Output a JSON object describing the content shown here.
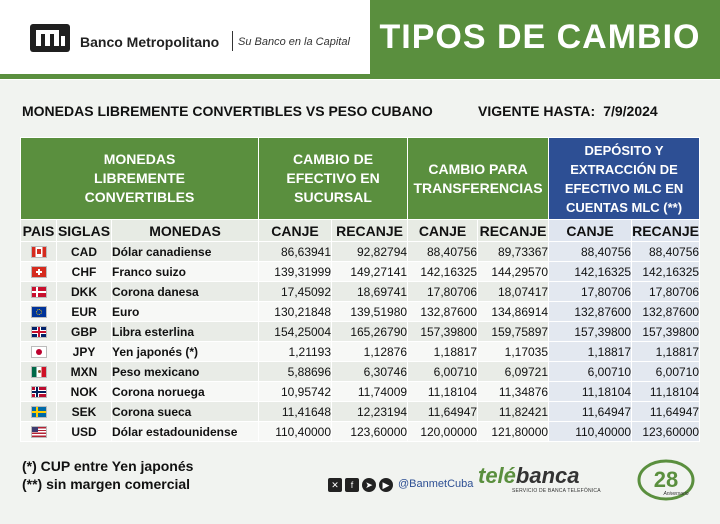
{
  "header": {
    "bank_name": "Banco Metropolitano",
    "slogan": "Su Banco en la Capital",
    "title": "TIPOS DE CAMBIO"
  },
  "subheader": {
    "left": "MONEDAS LIBREMENTE CONVERTIBLES VS PESO CUBANO",
    "right_label": "VIGENTE HASTA:",
    "right_date": "7/9/2024"
  },
  "table": {
    "group_headers": {
      "currencies": "MONEDAS LIBREMENTE CONVERTIBLES",
      "cash": "CAMBIO DE EFECTIVO EN SUCURSAL",
      "transfers": "CAMBIO PARA TRANSFERENCIAS",
      "mlc": "DEPÓSITO Y EXTRACCIÓN DE EFECTIVO MLC EN CUENTAS MLC (**)"
    },
    "columns": {
      "country": "PAIS",
      "code": "SIGLAS",
      "currency": "MONEDAS",
      "buy": "CANJE",
      "sell": "RECANJE"
    },
    "rows": [
      {
        "flag": "canada-flag-icon",
        "code": "CAD",
        "name": "Dólar canadiense",
        "cash_buy": "86,63941",
        "cash_sell": "92,82794",
        "tr_buy": "88,40756",
        "tr_sell": "89,73367",
        "mlc_buy": "88,40756",
        "mlc_sell": "88,40756"
      },
      {
        "flag": "switzerland-flag-icon",
        "code": "CHF",
        "name": "Franco suizo",
        "cash_buy": "139,31999",
        "cash_sell": "149,27141",
        "tr_buy": "142,16325",
        "tr_sell": "144,29570",
        "mlc_buy": "142,16325",
        "mlc_sell": "142,16325"
      },
      {
        "flag": "denmark-flag-icon",
        "code": "DKK",
        "name": "Corona danesa",
        "cash_buy": "17,45092",
        "cash_sell": "18,69741",
        "tr_buy": "17,80706",
        "tr_sell": "18,07417",
        "mlc_buy": "17,80706",
        "mlc_sell": "17,80706"
      },
      {
        "flag": "eu-flag-icon",
        "code": "EUR",
        "name": "Euro",
        "cash_buy": "130,21848",
        "cash_sell": "139,51980",
        "tr_buy": "132,87600",
        "tr_sell": "134,86914",
        "mlc_buy": "132,87600",
        "mlc_sell": "132,87600"
      },
      {
        "flag": "uk-flag-icon",
        "code": "GBP",
        "name": "Libra esterlina",
        "cash_buy": "154,25004",
        "cash_sell": "165,26790",
        "tr_buy": "157,39800",
        "tr_sell": "159,75897",
        "mlc_buy": "157,39800",
        "mlc_sell": "157,39800"
      },
      {
        "flag": "japan-flag-icon",
        "code": "JPY",
        "name": "Yen japonés (*)",
        "cash_buy": "1,21193",
        "cash_sell": "1,12876",
        "tr_buy": "1,18817",
        "tr_sell": "1,17035",
        "mlc_buy": "1,18817",
        "mlc_sell": "1,18817"
      },
      {
        "flag": "mexico-flag-icon",
        "code": "MXN",
        "name": "Peso mexicano",
        "cash_buy": "5,88696",
        "cash_sell": "6,30746",
        "tr_buy": "6,00710",
        "tr_sell": "6,09721",
        "mlc_buy": "6,00710",
        "mlc_sell": "6,00710"
      },
      {
        "flag": "norway-flag-icon",
        "code": "NOK",
        "name": "Corona noruega",
        "cash_buy": "10,95742",
        "cash_sell": "11,74009",
        "tr_buy": "11,18104",
        "tr_sell": "11,34876",
        "mlc_buy": "11,18104",
        "mlc_sell": "11,18104"
      },
      {
        "flag": "sweden-flag-icon",
        "code": "SEK",
        "name": "Corona sueca",
        "cash_buy": "11,41648",
        "cash_sell": "12,23194",
        "tr_buy": "11,64947",
        "tr_sell": "11,82421",
        "mlc_buy": "11,64947",
        "mlc_sell": "11,64947"
      },
      {
        "flag": "usa-flag-icon",
        "code": "USD",
        "name": "Dólar estadounidense",
        "cash_buy": "110,40000",
        "cash_sell": "123,60000",
        "tr_buy": "120,00000",
        "tr_sell": "121,80000",
        "mlc_buy": "110,40000",
        "mlc_sell": "123,60000"
      }
    ]
  },
  "notes": {
    "note1": "(*) CUP entre Yen japonés",
    "note2": "(**) sin margen comercial"
  },
  "footer": {
    "social_icons": [
      "x-icon",
      "facebook-icon",
      "telegram-icon",
      "youtube-icon"
    ],
    "handle": "@BanmetCuba",
    "telebanca_1": "telé",
    "telebanca_2": "banca",
    "telebanca_sub": "SERVICIO DE BANCA TELEFÓNICA",
    "anniversary": "28",
    "anniversary_sub": "Aniversario"
  },
  "colors": {
    "green": "#5a8f3e",
    "blue": "#2d4f94"
  }
}
